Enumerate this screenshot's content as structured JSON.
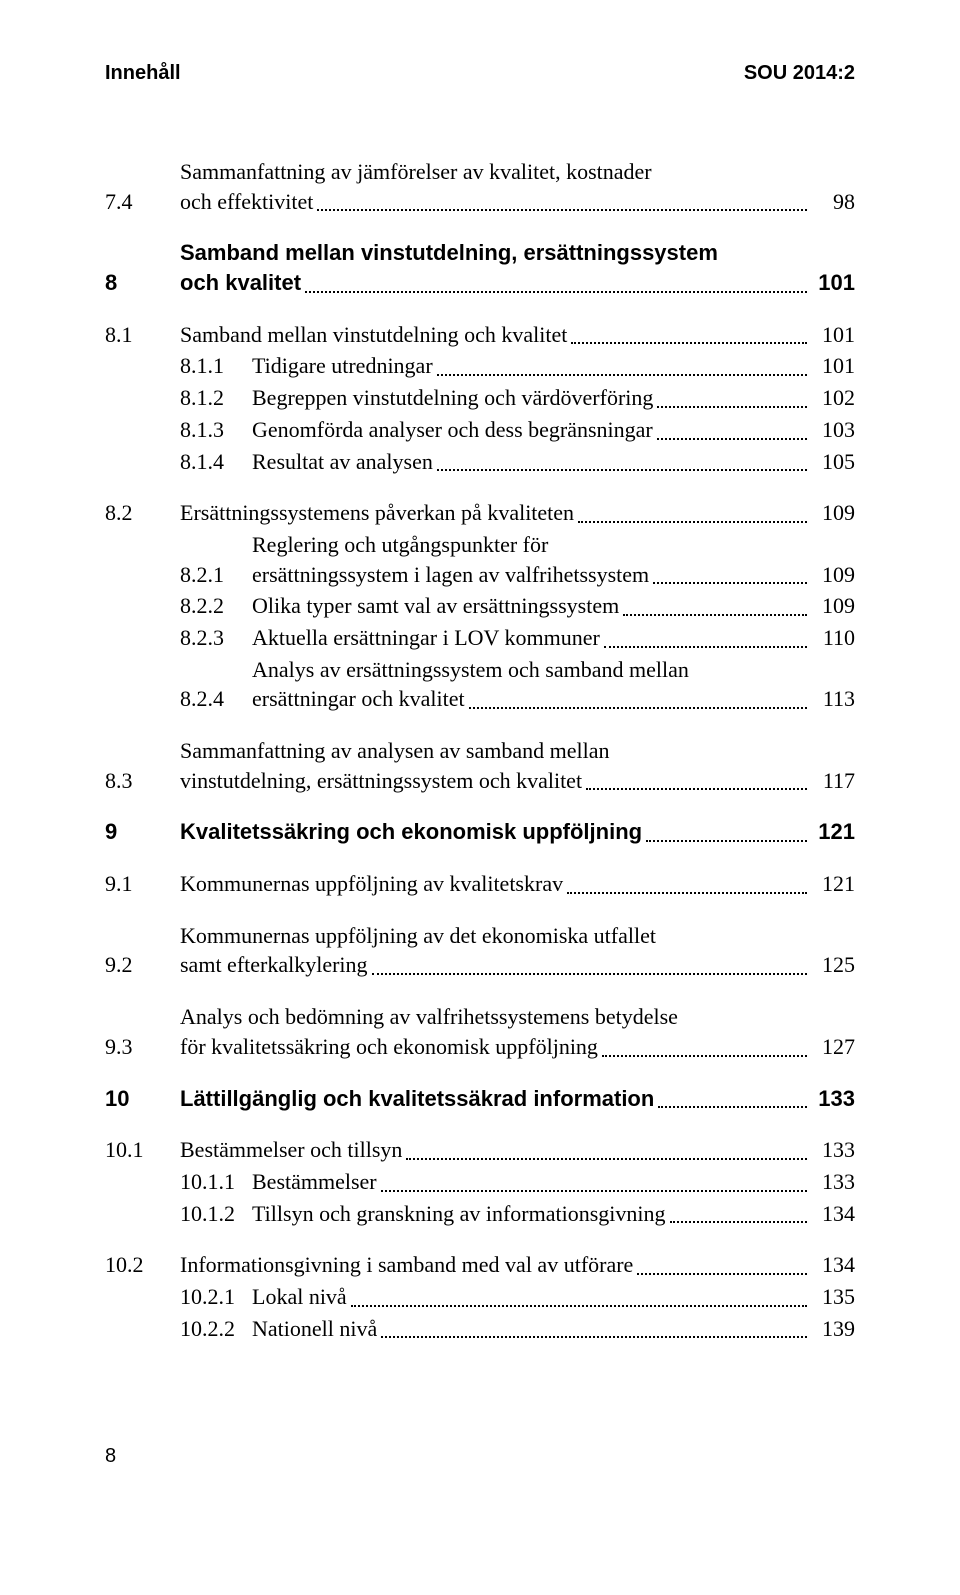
{
  "header": {
    "left": "Innehåll",
    "right": "SOU 2014:2"
  },
  "footer": {
    "page": "8"
  },
  "toc": [
    {
      "type": "entry",
      "num": "7.4",
      "lines": [
        "Sammanfattning av jämförelser av kvalitet, kostnader",
        "och effektivitet"
      ],
      "page": "98"
    },
    {
      "type": "entry",
      "bold": true,
      "num": "8",
      "lines": [
        "Samband mellan vinstutdelning, ersättningssystem",
        "och kvalitet"
      ],
      "page": "101"
    },
    {
      "type": "entry",
      "num": "8.1",
      "lines": [
        "Samband mellan vinstutdelning och kvalitet"
      ],
      "page": "101"
    },
    {
      "type": "sub",
      "num": "8.1.1",
      "lines": [
        "Tidigare utredningar"
      ],
      "page": "101"
    },
    {
      "type": "sub",
      "num": "8.1.2",
      "lines": [
        "Begreppen vinstutdelning och värdöverföring"
      ],
      "page": "102"
    },
    {
      "type": "sub",
      "num": "8.1.3",
      "lines": [
        "Genomförda analyser och dess begränsningar"
      ],
      "page": "103"
    },
    {
      "type": "sub",
      "num": "8.1.4",
      "lines": [
        "Resultat av analysen"
      ],
      "page": "105"
    },
    {
      "type": "entry",
      "num": "8.2",
      "lines": [
        "Ersättningssystemens påverkan på kvaliteten"
      ],
      "page": "109"
    },
    {
      "type": "sub",
      "num": "8.2.1",
      "lines": [
        "Reglering och utgångspunkter för",
        "ersättningssystem i lagen av valfrihetssystem"
      ],
      "page": "109"
    },
    {
      "type": "sub",
      "num": "8.2.2",
      "lines": [
        "Olika typer samt val av ersättningssystem"
      ],
      "page": "109"
    },
    {
      "type": "sub",
      "num": "8.2.3",
      "lines": [
        "Aktuella ersättningar i LOV kommuner"
      ],
      "page": "110"
    },
    {
      "type": "sub",
      "num": "8.2.4",
      "lines": [
        "Analys av ersättningssystem och samband mellan",
        "ersättningar och kvalitet"
      ],
      "page": "113"
    },
    {
      "type": "entry",
      "num": "8.3",
      "lines": [
        "Sammanfattning av analysen av samband mellan",
        "vinstutdelning, ersättningssystem och kvalitet"
      ],
      "page": "117"
    },
    {
      "type": "entry",
      "bold": true,
      "num": "9",
      "lines": [
        "Kvalitetssäkring och ekonomisk uppföljning"
      ],
      "page": "121"
    },
    {
      "type": "entry",
      "num": "9.1",
      "lines": [
        "Kommunernas uppföljning av kvalitetskrav"
      ],
      "page": "121"
    },
    {
      "type": "entry",
      "num": "9.2",
      "lines": [
        "Kommunernas uppföljning av det ekonomiska utfallet",
        "samt efterkalkylering"
      ],
      "page": "125"
    },
    {
      "type": "entry",
      "num": "9.3",
      "lines": [
        "Analys och bedömning av valfrihetssystemens betydelse",
        "för kvalitetssäkring och ekonomisk uppföljning"
      ],
      "page": "127"
    },
    {
      "type": "entry",
      "bold": true,
      "num": "10",
      "lines": [
        "Lättillgänglig och kvalitetssäkrad information"
      ],
      "page": "133"
    },
    {
      "type": "entry",
      "num": "10.1",
      "lines": [
        "Bestämmelser och tillsyn"
      ],
      "page": "133"
    },
    {
      "type": "sub",
      "num": "10.1.1",
      "lines": [
        "Bestämmelser"
      ],
      "page": "133"
    },
    {
      "type": "sub",
      "num": "10.1.2",
      "lines": [
        "Tillsyn och granskning av informationsgivning"
      ],
      "page": "134"
    },
    {
      "type": "entry",
      "num": "10.2",
      "lines": [
        "Informationsgivning i samband med val av utförare"
      ],
      "page": "134"
    },
    {
      "type": "sub",
      "num": "10.2.1",
      "lines": [
        "Lokal nivå"
      ],
      "page": "135"
    },
    {
      "type": "sub",
      "num": "10.2.2",
      "lines": [
        "Nationell nivå"
      ],
      "page": "139"
    }
  ],
  "groups": [
    [
      0
    ],
    [
      1
    ],
    [
      2,
      3,
      4,
      5,
      6
    ],
    [
      7,
      8,
      9,
      10,
      11
    ],
    [
      12
    ],
    [
      13
    ],
    [
      14
    ],
    [
      15
    ],
    [
      16
    ],
    [
      17
    ],
    [
      18,
      19,
      20
    ],
    [
      21,
      22,
      23
    ]
  ]
}
